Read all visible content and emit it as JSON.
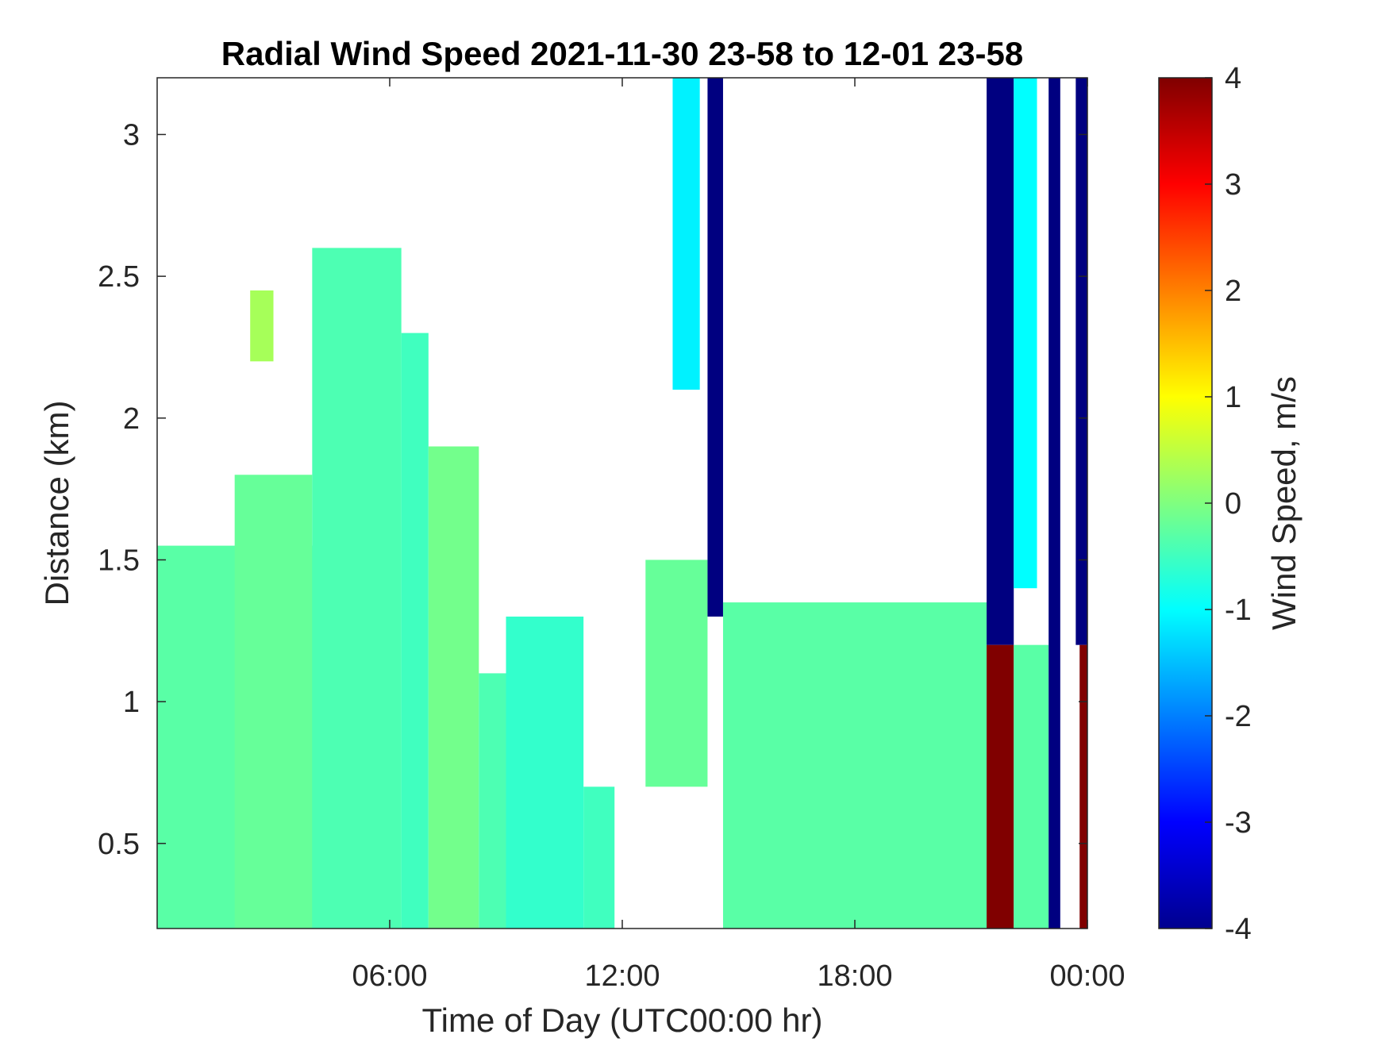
{
  "chart_data": {
    "type": "heatmap",
    "title": "Radial Wind Speed 2021-11-30 23-58 to 12-01 23-58",
    "xlabel": "Time of Day (UTC00:00 hr)",
    "ylabel": "Distance (km)",
    "colorbar_label": "Wind Speed, m/s",
    "colormap": "jet",
    "x_unit": "hours",
    "xlim": [
      0,
      24
    ],
    "ylim": [
      0.2,
      3.2
    ],
    "clim": [
      -4,
      4
    ],
    "x_ticks": [
      {
        "value": 6,
        "label": "06:00"
      },
      {
        "value": 12,
        "label": "12:00"
      },
      {
        "value": 18,
        "label": "18:00"
      },
      {
        "value": 24,
        "label": "00:00"
      }
    ],
    "y_ticks": [
      {
        "value": 0.5,
        "label": "0.5"
      },
      {
        "value": 1,
        "label": "1"
      },
      {
        "value": 1.5,
        "label": "1.5"
      },
      {
        "value": 2,
        "label": "2"
      },
      {
        "value": 2.5,
        "label": "2.5"
      },
      {
        "value": 3,
        "label": "3"
      }
    ],
    "colorbar_ticks": [
      {
        "value": 4,
        "label": "4"
      },
      {
        "value": 3,
        "label": "3"
      },
      {
        "value": 2,
        "label": "2"
      },
      {
        "value": 1,
        "label": "1"
      },
      {
        "value": 0,
        "label": "0"
      },
      {
        "value": -1,
        "label": "-1"
      },
      {
        "value": -2,
        "label": "-2"
      },
      {
        "value": -3,
        "label": "-3"
      },
      {
        "value": -4,
        "label": "-4"
      }
    ],
    "regions": [
      {
        "x": [
          0,
          6
        ],
        "y_top": 1.55,
        "y_bottom": 0.2,
        "speed": -0.3
      },
      {
        "x": [
          2,
          4
        ],
        "y_top": 1.8,
        "y_bottom": 0.2,
        "speed": -0.2
      },
      {
        "x": [
          4,
          6.3
        ],
        "y_top": 2.6,
        "y_bottom": 0.2,
        "speed": -0.4
      },
      {
        "x": [
          2.4,
          3.0
        ],
        "y_top": 2.45,
        "y_bottom": 2.2,
        "speed": 0.3
      },
      {
        "x": [
          6.3,
          7.0
        ],
        "y_top": 2.3,
        "y_bottom": 0.2,
        "speed": -0.5
      },
      {
        "x": [
          7.0,
          8.3
        ],
        "y_top": 1.9,
        "y_bottom": 0.2,
        "speed": -0.1
      },
      {
        "x": [
          8.3,
          9.0
        ],
        "y_top": 1.1,
        "y_bottom": 0.2,
        "speed": -0.4
      },
      {
        "x": [
          9.0,
          11.0
        ],
        "y_top": 1.3,
        "y_bottom": 0.2,
        "speed": -0.6
      },
      {
        "x": [
          11.0,
          11.8
        ],
        "y_top": 0.7,
        "y_bottom": 0.2,
        "speed": -0.5
      },
      {
        "x": [
          12.6,
          14.2
        ],
        "y_top": 1.5,
        "y_bottom": 0.7,
        "speed": -0.2
      },
      {
        "x": [
          13.3,
          14.0
        ],
        "y_top": 3.2,
        "y_bottom": 2.1,
        "speed": -1.1
      },
      {
        "x": [
          14.2,
          14.6
        ],
        "y_top": 3.2,
        "y_bottom": 1.3,
        "speed": -4.0
      },
      {
        "x": [
          14.6,
          21.4
        ],
        "y_top": 1.35,
        "y_bottom": 0.2,
        "speed": -0.3
      },
      {
        "x": [
          21.4,
          22.1
        ],
        "y_top": 3.2,
        "y_bottom": 1.2,
        "speed": -4.0
      },
      {
        "x": [
          21.4,
          22.1
        ],
        "y_top": 1.2,
        "y_bottom": 0.2,
        "speed": 4.0
      },
      {
        "x": [
          22.1,
          22.7
        ],
        "y_top": 3.2,
        "y_bottom": 1.4,
        "speed": -1.0
      },
      {
        "x": [
          22.1,
          23.0
        ],
        "y_top": 1.2,
        "y_bottom": 0.2,
        "speed": -0.3
      },
      {
        "x": [
          23.0,
          23.3
        ],
        "y_top": 3.2,
        "y_bottom": 0.2,
        "speed": -4.0
      },
      {
        "x": [
          23.7,
          24.0
        ],
        "y_top": 3.2,
        "y_bottom": 1.2,
        "speed": -4.0
      },
      {
        "x": [
          23.8,
          24.0
        ],
        "y_top": 1.2,
        "y_bottom": 0.2,
        "speed": 4.0
      }
    ]
  }
}
